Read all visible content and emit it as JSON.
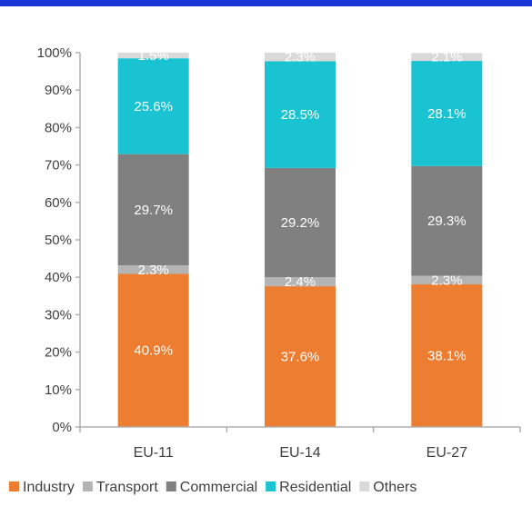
{
  "colors": {
    "accent_bar": "#1a35d6",
    "axis": "#b0b0b0",
    "text": "#404040"
  },
  "chart_data": {
    "type": "bar",
    "stacked": true,
    "title": "",
    "xlabel": "",
    "ylabel": "",
    "ylim": [
      0,
      100
    ],
    "y_ticks": [
      "0%",
      "10%",
      "20%",
      "30%",
      "40%",
      "50%",
      "60%",
      "70%",
      "80%",
      "90%",
      "100%"
    ],
    "categories": [
      "EU-11",
      "EU-14",
      "EU-27"
    ],
    "series": [
      {
        "name": "Industry",
        "color": "#ed7d31",
        "values": [
          40.9,
          37.6,
          38.1
        ],
        "labels": [
          "40.9%",
          "37.6%",
          "38.1%"
        ]
      },
      {
        "name": "Transport",
        "color": "#b4b4b4",
        "values": [
          2.3,
          2.4,
          2.3
        ],
        "labels": [
          "2.3%",
          "2.4%",
          "2.3%"
        ]
      },
      {
        "name": "Commercial",
        "color": "#808080",
        "values": [
          29.7,
          29.2,
          29.3
        ],
        "labels": [
          "29.7%",
          "29.2%",
          "29.3%"
        ]
      },
      {
        "name": "Residential",
        "color": "#19c3d1",
        "values": [
          25.6,
          28.5,
          28.1
        ],
        "labels": [
          "25.6%",
          "28.5%",
          "28.1%"
        ]
      },
      {
        "name": "Others",
        "color": "#d9d9d9",
        "values": [
          1.5,
          2.3,
          2.1
        ],
        "labels": [
          "1.5%",
          "2.3%",
          "2.1%"
        ]
      }
    ],
    "legend": {
      "placement": "bottom",
      "entries": [
        "Industry",
        "Transport",
        "Commercial",
        "Residential",
        "Others"
      ]
    },
    "grid": false
  }
}
